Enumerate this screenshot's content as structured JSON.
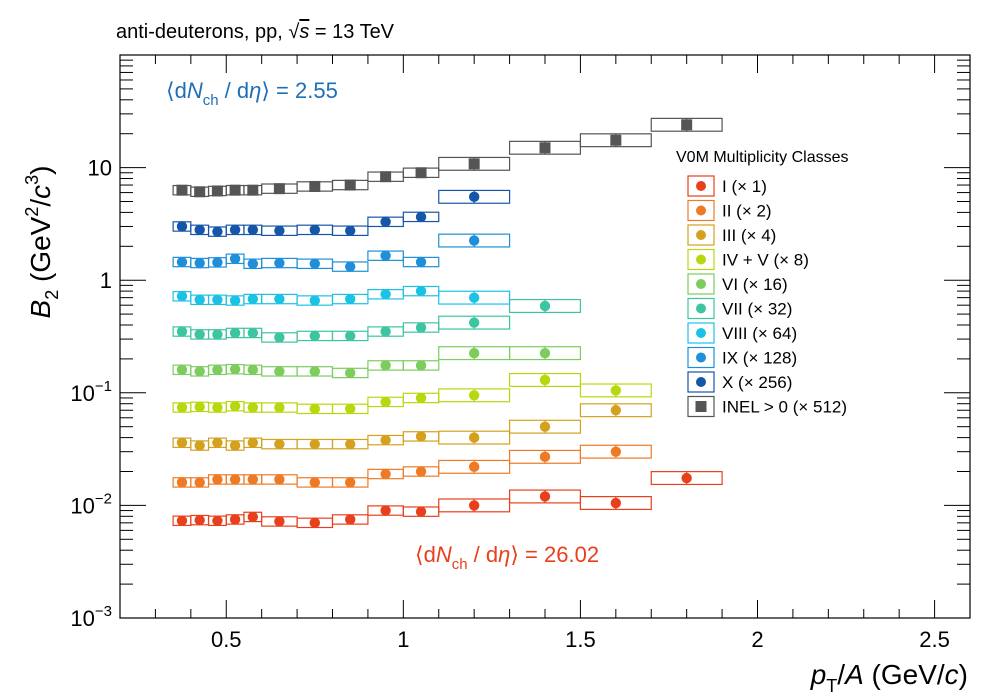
{
  "title": {
    "prefix": "anti-deuterons, pp, ",
    "sqrt": "√",
    "s": "s",
    "suffix": " = 13 TeV"
  },
  "annotations": {
    "top": {
      "open": "⟨d",
      "N": "N",
      "sub": "ch",
      "mid": " / d",
      "eta": "η",
      "close": "⟩ = 2.55",
      "color": "#1f6fb8"
    },
    "bottom": {
      "open": "⟨d",
      "N": "N",
      "sub": "ch",
      "mid": " / d",
      "eta": "η",
      "close": "⟩ = 26.02",
      "color": "#e8401c"
    }
  },
  "chart_data": {
    "type": "scatter",
    "title": "anti-deuterons, pp, √s = 13 TeV",
    "xlabel": "p_T/A (GeV/c)",
    "ylabel": "B_2 (GeV^2/c^3)",
    "xlim": [
      0.2,
      2.6
    ],
    "ylim": [
      0.001,
      100
    ],
    "yscale": "log",
    "grid": false,
    "legend": {
      "title": "V0M Multiplicity Classes",
      "placement": "right"
    },
    "x_ticks": [
      "0.5",
      "1",
      "1.5",
      "2",
      "2.5"
    ],
    "y_ticks": [
      "10^-3",
      "10^-2",
      "10^-1",
      "1",
      "10"
    ],
    "series": [
      {
        "name": "I (× 1)",
        "color": "#e8401c",
        "marker": "circle",
        "x": [
          0.375,
          0.425,
          0.475,
          0.525,
          0.575,
          0.65,
          0.75,
          0.85,
          0.95,
          1.05,
          1.2,
          1.4,
          1.6,
          1.8
        ],
        "y": [
          0.0073,
          0.0074,
          0.0073,
          0.0075,
          0.0079,
          0.0072,
          0.007,
          0.0075,
          0.009,
          0.0088,
          0.01,
          0.012,
          0.0105,
          0.0175
        ]
      },
      {
        "name": "II (× 2)",
        "color": "#ee7a25",
        "marker": "circle",
        "x": [
          0.375,
          0.425,
          0.475,
          0.525,
          0.575,
          0.65,
          0.75,
          0.85,
          0.95,
          1.05,
          1.2,
          1.4,
          1.6
        ],
        "y": [
          0.016,
          0.016,
          0.017,
          0.017,
          0.017,
          0.017,
          0.016,
          0.016,
          0.019,
          0.02,
          0.022,
          0.027,
          0.03
        ]
      },
      {
        "name": "III (× 4)",
        "color": "#d4a11e",
        "marker": "circle",
        "x": [
          0.375,
          0.425,
          0.475,
          0.525,
          0.575,
          0.65,
          0.75,
          0.85,
          0.95,
          1.05,
          1.2,
          1.4,
          1.6
        ],
        "y": [
          0.036,
          0.034,
          0.036,
          0.034,
          0.036,
          0.035,
          0.035,
          0.035,
          0.038,
          0.041,
          0.04,
          0.05,
          0.07
        ]
      },
      {
        "name": "IV + V (× 8)",
        "color": "#b9d70e",
        "marker": "circle",
        "x": [
          0.375,
          0.425,
          0.475,
          0.525,
          0.575,
          0.65,
          0.75,
          0.85,
          0.95,
          1.05,
          1.2,
          1.4,
          1.6
        ],
        "y": [
          0.074,
          0.075,
          0.074,
          0.076,
          0.074,
          0.074,
          0.072,
          0.072,
          0.083,
          0.09,
          0.095,
          0.13,
          0.105
        ]
      },
      {
        "name": "VI (× 16)",
        "color": "#7ccc5e",
        "marker": "circle",
        "x": [
          0.375,
          0.425,
          0.475,
          0.525,
          0.575,
          0.65,
          0.75,
          0.85,
          0.95,
          1.05,
          1.2,
          1.4
        ],
        "y": [
          0.16,
          0.155,
          0.16,
          0.162,
          0.16,
          0.155,
          0.155,
          0.15,
          0.175,
          0.175,
          0.225,
          0.225
        ]
      },
      {
        "name": "VII (× 32)",
        "color": "#3dc4a0",
        "marker": "circle",
        "x": [
          0.375,
          0.425,
          0.475,
          0.525,
          0.575,
          0.65,
          0.75,
          0.85,
          0.95,
          1.05,
          1.2,
          1.4
        ],
        "y": [
          0.35,
          0.33,
          0.33,
          0.34,
          0.34,
          0.31,
          0.32,
          0.32,
          0.35,
          0.38,
          0.42,
          0.59
        ]
      },
      {
        "name": "VIII (× 64)",
        "color": "#1cc2e6",
        "marker": "circle",
        "x": [
          0.375,
          0.425,
          0.475,
          0.525,
          0.575,
          0.65,
          0.75,
          0.85,
          0.95,
          1.05,
          1.2
        ],
        "y": [
          0.72,
          0.67,
          0.67,
          0.66,
          0.68,
          0.68,
          0.66,
          0.68,
          0.75,
          0.8,
          0.7
        ]
      },
      {
        "name": "IX (× 128)",
        "color": "#1e8fd8",
        "marker": "circle",
        "x": [
          0.375,
          0.425,
          0.475,
          0.525,
          0.575,
          0.65,
          0.75,
          0.85,
          0.95,
          1.05,
          1.2
        ],
        "y": [
          1.45,
          1.42,
          1.44,
          1.55,
          1.4,
          1.42,
          1.4,
          1.32,
          1.65,
          1.45,
          2.25
        ]
      },
      {
        "name": "X (× 256)",
        "color": "#1556a8",
        "marker": "circle",
        "x": [
          0.375,
          0.425,
          0.475,
          0.525,
          0.575,
          0.65,
          0.75,
          0.85,
          0.95,
          1.05,
          1.2
        ],
        "y": [
          3.0,
          2.8,
          2.7,
          2.8,
          2.8,
          2.75,
          2.8,
          2.75,
          3.3,
          3.65,
          5.5
        ]
      },
      {
        "name": "INEL > 0 (× 512)",
        "color": "#555555",
        "marker": "square",
        "x": [
          0.375,
          0.425,
          0.475,
          0.525,
          0.575,
          0.65,
          0.75,
          0.85,
          0.95,
          1.05,
          1.2,
          1.4,
          1.6,
          1.8
        ],
        "y": [
          6.3,
          6.1,
          6.2,
          6.3,
          6.3,
          6.5,
          6.8,
          7.0,
          8.3,
          9.0,
          10.8,
          15.0,
          17.5,
          24.0
        ]
      }
    ]
  }
}
